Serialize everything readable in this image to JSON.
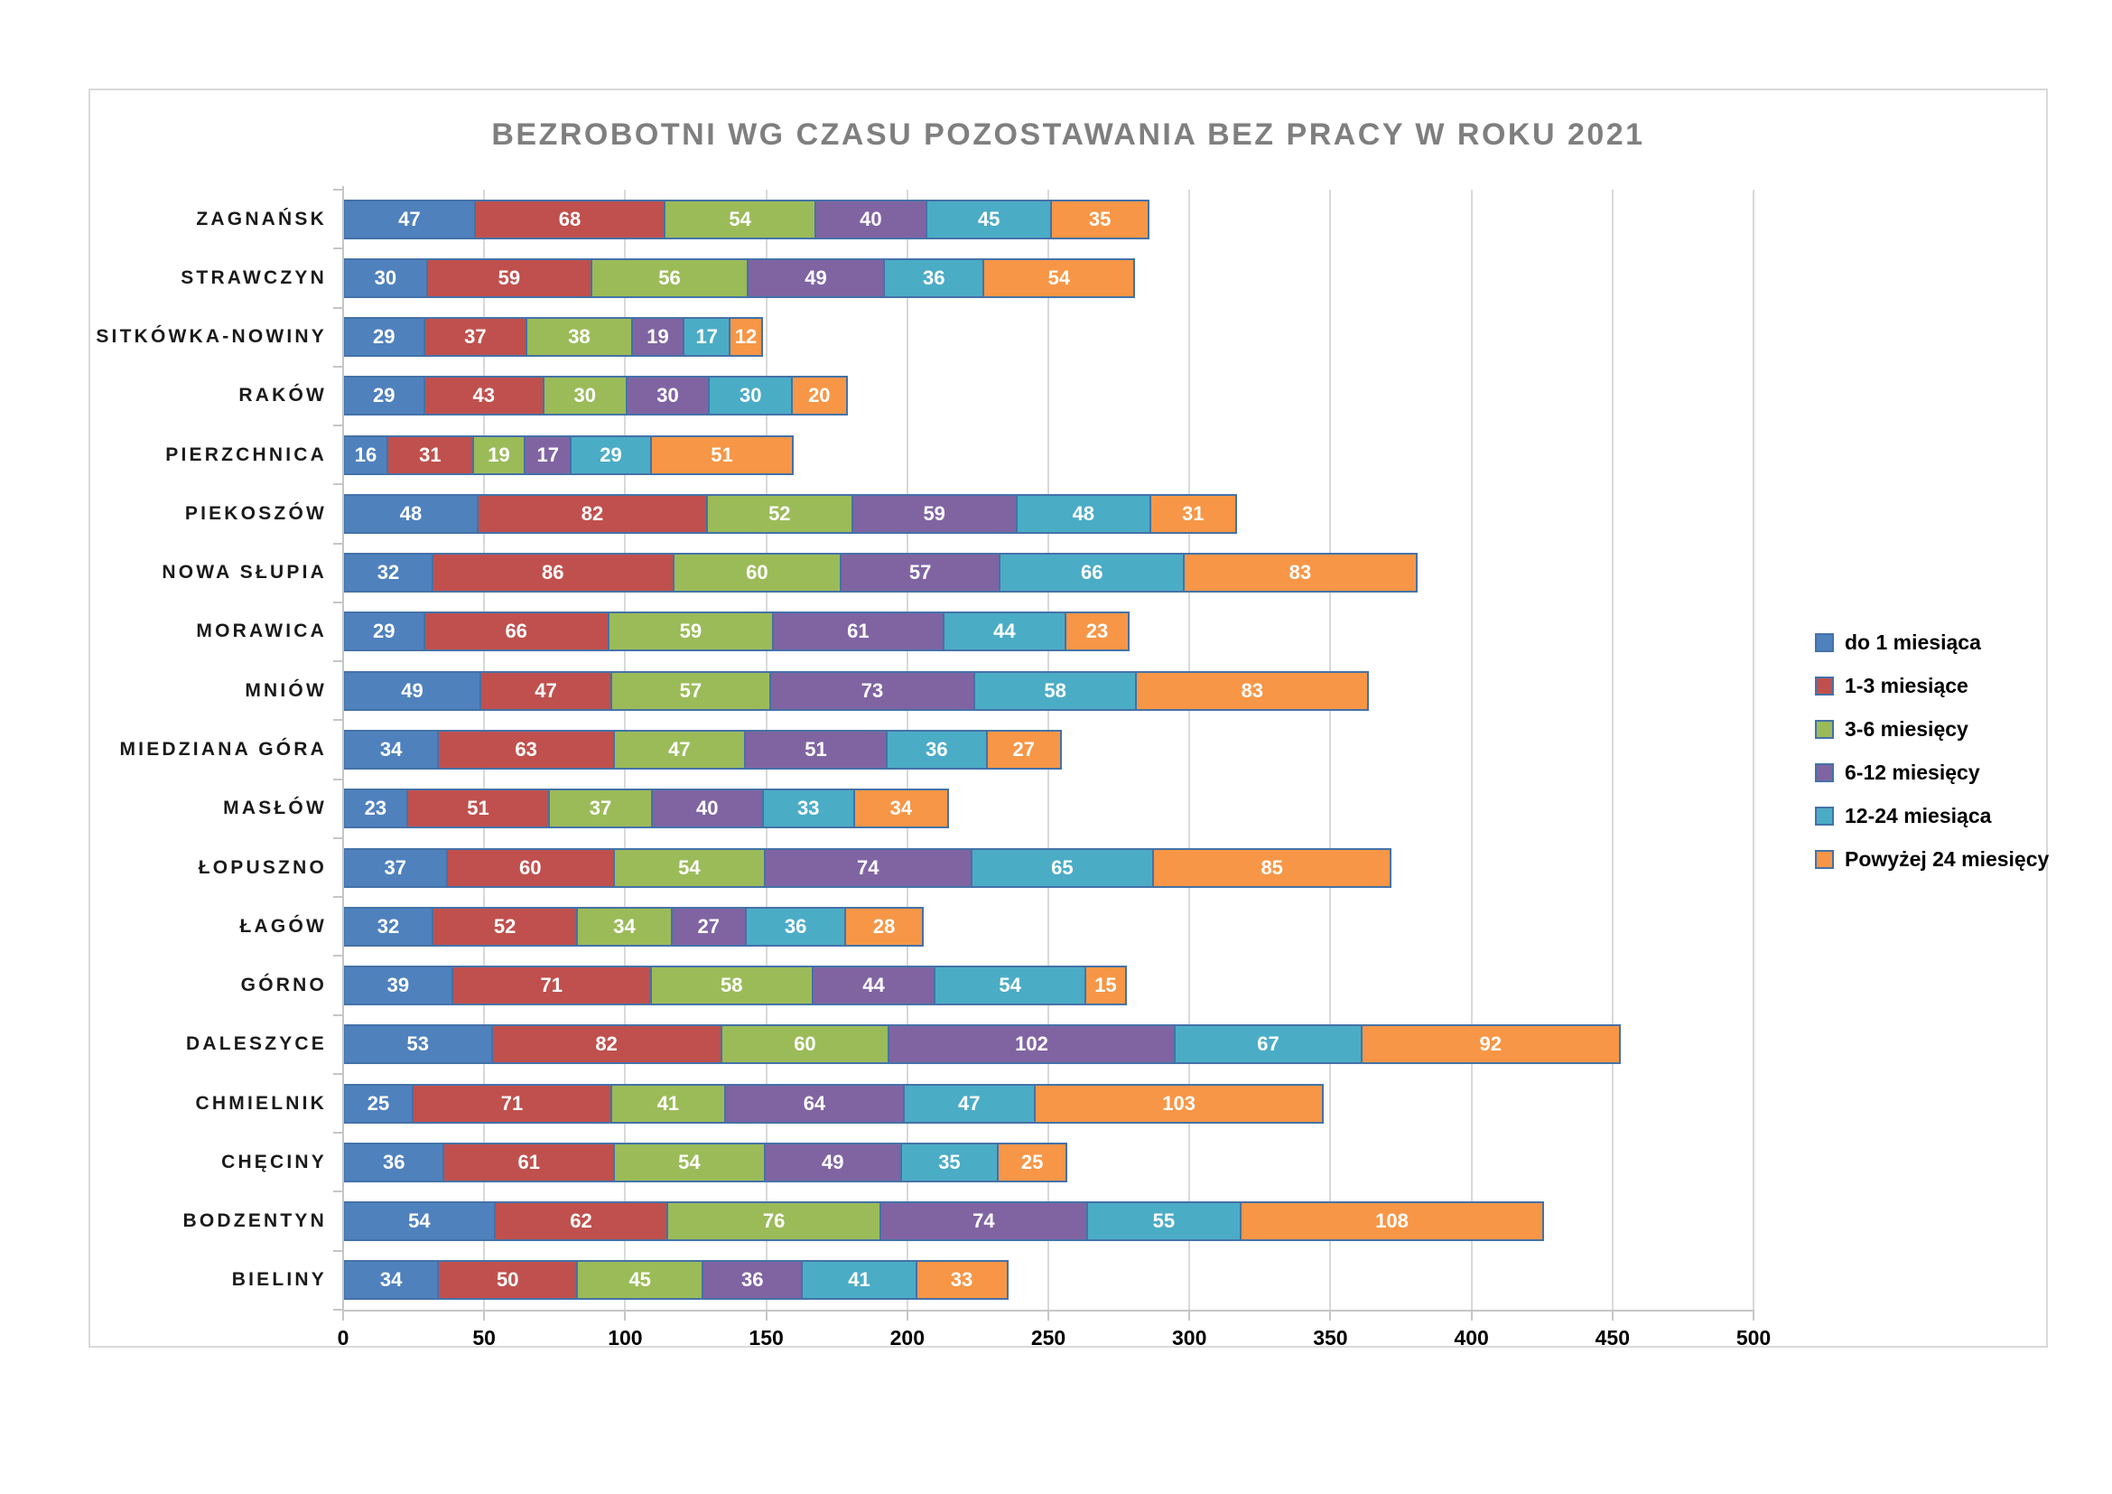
{
  "chart_data": {
    "type": "bar",
    "orientation": "horizontal",
    "stacked": true,
    "title": "BEZROBOTNI WG CZASU POZOSTAWANIA BEZ PRACY W ROKU 2021",
    "categories": [
      "ZAGNAŃSK",
      "STRAWCZYN",
      "SITKÓWKA-NOWINY",
      "RAKÓW",
      "PIERZCHNICA",
      "PIEKOSZÓW",
      "NOWA SŁUPIA",
      "MORAWICA",
      "MNIÓW",
      "MIEDZIANA GÓRA",
      "MASŁÓW",
      "ŁOPUSZNO",
      "ŁAGÓW",
      "GÓRNO",
      "DALESZYCE",
      "CHMIELNIK",
      "CHĘCINY",
      "BODZENTYN",
      "BIELINY"
    ],
    "series": [
      {
        "name": "do 1 miesiąca",
        "color": "#4F81BD",
        "values": [
          47,
          30,
          29,
          29,
          16,
          48,
          32,
          29,
          49,
          34,
          23,
          37,
          32,
          39,
          53,
          25,
          36,
          54,
          34
        ]
      },
      {
        "name": "1-3 miesiące",
        "color": "#C0504D",
        "values": [
          68,
          59,
          37,
          43,
          31,
          82,
          86,
          66,
          47,
          63,
          51,
          60,
          52,
          71,
          82,
          71,
          61,
          62,
          50
        ]
      },
      {
        "name": "3-6 miesięcy",
        "color": "#9BBB59",
        "values": [
          54,
          56,
          38,
          30,
          19,
          52,
          60,
          59,
          57,
          47,
          37,
          54,
          34,
          58,
          60,
          41,
          54,
          76,
          45
        ]
      },
      {
        "name": "6-12 miesięcy",
        "color": "#8064A2",
        "values": [
          40,
          49,
          19,
          30,
          17,
          59,
          57,
          61,
          73,
          51,
          40,
          74,
          27,
          44,
          102,
          64,
          49,
          74,
          36
        ]
      },
      {
        "name": "12-24 miesiąca",
        "color": "#4BACC6",
        "values": [
          45,
          36,
          17,
          30,
          29,
          48,
          66,
          44,
          58,
          36,
          33,
          65,
          36,
          54,
          67,
          47,
          35,
          55,
          41
        ]
      },
      {
        "name": "Powyżej 24 miesięcy",
        "color": "#F79646",
        "values": [
          35,
          54,
          12,
          20,
          51,
          31,
          83,
          23,
          83,
          27,
          34,
          85,
          28,
          15,
          92,
          103,
          25,
          108,
          33
        ]
      }
    ],
    "x_axis": {
      "min": 0,
      "max": 500,
      "tick_interval": 50,
      "ticks": [
        0,
        50,
        100,
        150,
        200,
        250,
        300,
        350,
        400,
        450,
        500
      ]
    },
    "grid": true,
    "legend_position": "right",
    "data_labels": true,
    "data_label_color": "#FFFFFF",
    "segment_border_color": "#4472A8",
    "title_color": "#7F7F7F"
  }
}
